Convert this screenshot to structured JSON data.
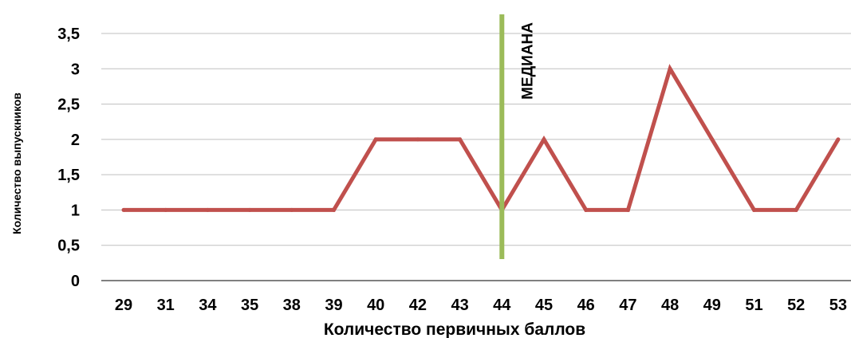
{
  "chart_data": {
    "type": "line",
    "title": "",
    "xlabel": "Количество первичных баллов",
    "ylabel": "Количество выпускников",
    "categories": [
      "29",
      "31",
      "34",
      "35",
      "38",
      "39",
      "40",
      "42",
      "43",
      "44",
      "45",
      "46",
      "47",
      "48",
      "49",
      "51",
      "52",
      "53"
    ],
    "series": [
      {
        "values": [
          1,
          1,
          1,
          1,
          1,
          1,
          2,
          2,
          2,
          1,
          2,
          1,
          1,
          3,
          2,
          1,
          1,
          2
        ],
        "color": "#c0504d"
      }
    ],
    "ylim": [
      0,
      3.5
    ],
    "yticks": [
      "0",
      "0,5",
      "1",
      "1,5",
      "2",
      "2,5",
      "3",
      "3,5"
    ],
    "grid": true,
    "legend": "none",
    "median": {
      "category": "44",
      "label": "МЕДИАНА",
      "color": "#9bbb59"
    }
  }
}
